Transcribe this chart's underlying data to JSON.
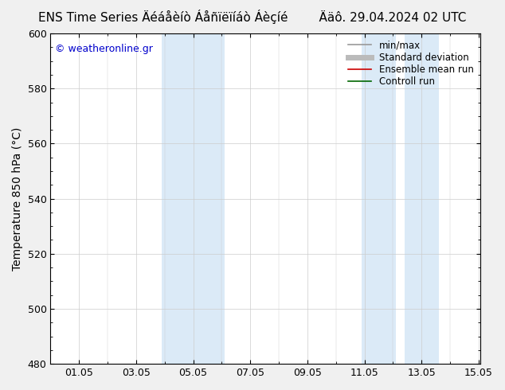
{
  "title": "ENS Time Series Äéáåèíò ÁåñïëïÝíáò Áèçíßíé        Ääô. 29.04.2024 02 UTC",
  "title_raw": "ENS Time Series Äéáåèíò Áåñïëïíáò Áèçíßíé        Ääô. 29.04.2024 02 UTC",
  "ylabel": "Temperature 850 hPa (°C)",
  "watermark": "© weatheronline.gr",
  "xlim": [
    0.0,
    15.05
  ],
  "ylim": [
    480,
    600
  ],
  "yticks": [
    480,
    500,
    520,
    540,
    560,
    580,
    600
  ],
  "xtick_labels": [
    "01.05",
    "03.05",
    "05.05",
    "07.05",
    "09.05",
    "11.05",
    "13.05",
    "15.05"
  ],
  "xtick_positions": [
    1,
    3,
    5,
    7,
    9,
    11,
    13,
    15
  ],
  "shaded_bands": [
    {
      "xmin": 3.9,
      "xmax": 6.1,
      "color": "#dbeaf7"
    },
    {
      "xmin": 10.9,
      "xmax": 12.1,
      "color": "#dbeaf7"
    },
    {
      "xmin": 12.4,
      "xmax": 13.6,
      "color": "#dbeaf7"
    }
  ],
  "legend_items": [
    {
      "label": "min/max",
      "color": "#999999",
      "lw": 1.2
    },
    {
      "label": "Standard deviation",
      "color": "#bbbbbb",
      "lw": 5
    },
    {
      "label": "Ensemble mean run",
      "color": "#cc0000",
      "lw": 1.2
    },
    {
      "label": "Controll run",
      "color": "#006600",
      "lw": 1.2
    }
  ],
  "bg_color": "#f0f0f0",
  "plot_bg_color": "#ffffff",
  "spine_color": "#000000",
  "grid_color": "#cccccc",
  "title_fontsize": 11,
  "label_fontsize": 10,
  "tick_fontsize": 9,
  "legend_fontsize": 8.5,
  "watermark_color": "#0000cc"
}
